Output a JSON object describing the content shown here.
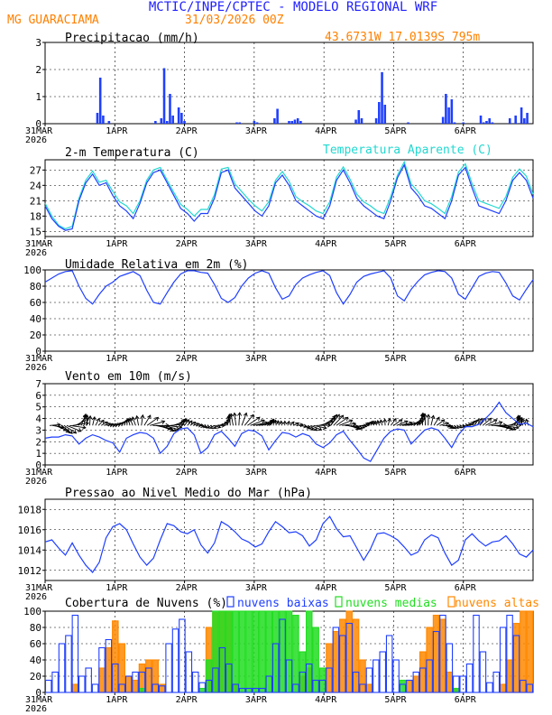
{
  "header": {
    "title": "MCTIC/INPE/CPTEC - MODELO REGIONAL WRF",
    "location": "MG GUARACIAMA",
    "run": "31/03/2026 00Z",
    "coords": "43.6731W 17.0139S 795m"
  },
  "colors": {
    "blue": "#1f3fff",
    "cyan": "#22d8d0",
    "green": "#22dd22",
    "orange": "#ff8800",
    "title_blue": "#2020ff",
    "title_orange": "#ff8000"
  },
  "x_axis": {
    "ticks": [
      "31MAR",
      "1APR",
      "2APR",
      "3APR",
      "4APR",
      "5APR",
      "6APR"
    ],
    "first_year": "2026",
    "days": 7
  },
  "chart_data": [
    {
      "type": "bar",
      "title": "Precipitacao (mm/h)",
      "ylim": [
        0,
        3
      ],
      "yticks": [
        "0",
        "1",
        "2",
        "3"
      ],
      "x_hours": [
        18,
        19,
        20,
        22,
        38,
        40,
        41,
        42,
        43,
        44,
        46,
        47,
        48,
        66,
        67,
        72,
        73,
        79,
        80,
        84,
        85,
        86,
        87,
        88,
        107,
        108,
        109,
        114,
        115,
        116,
        117,
        125,
        137,
        138,
        139,
        140,
        141,
        144,
        150,
        151,
        152,
        153,
        154,
        160,
        162,
        164,
        165,
        166
      ],
      "values": [
        0.4,
        1.7,
        0.3,
        0.1,
        0.1,
        0.2,
        2.05,
        0.1,
        1.1,
        0.3,
        0.6,
        0.4,
        0.1,
        0.05,
        0.05,
        0.1,
        0.05,
        0.2,
        0.55,
        0.1,
        0.1,
        0.15,
        0.2,
        0.1,
        0.15,
        0.5,
        0.2,
        0.2,
        0.8,
        1.9,
        0.7,
        0.05,
        0.25,
        1.1,
        0.6,
        0.9,
        0.05,
        0.05,
        0.3,
        0.05,
        0.1,
        0.2,
        0.05,
        0.2,
        0.3,
        0.6,
        0.2,
        0.4
      ]
    },
    {
      "type": "line",
      "title": "2-m Temperatura (C)",
      "legend": "Temperatura Aparente (C)",
      "ylim": [
        14,
        29
      ],
      "yticks": [
        "15",
        "18",
        "21",
        "24",
        "27"
      ],
      "series": [
        {
          "name": "2-m Temperatura",
          "values": [
            20,
            17.5,
            16,
            15.2,
            15.5,
            21,
            24.5,
            26.2,
            24,
            24.5,
            22,
            20,
            19,
            17.5,
            20.5,
            24.5,
            26.5,
            27,
            24.5,
            22,
            19.5,
            18.5,
            17,
            18.5,
            18.5,
            21.5,
            26.5,
            27,
            23.5,
            22,
            20.5,
            19,
            18,
            20,
            24.5,
            26,
            24,
            21,
            20,
            19,
            18,
            17.5,
            20,
            25,
            27,
            24.5,
            21.5,
            20,
            19,
            18,
            17.5,
            21,
            25.5,
            28,
            23.5,
            22,
            20,
            19.5,
            18.5,
            17.5,
            21,
            26,
            27.5,
            23.5,
            20,
            19.5,
            19,
            18.5,
            21,
            25,
            26.5,
            25,
            21.5
          ]
        },
        {
          "name": "Temperatura Aparente",
          "values": [
            20.5,
            18,
            16.2,
            15.5,
            16,
            21.5,
            25,
            26.8,
            24.6,
            25,
            22.8,
            20.8,
            20,
            18.5,
            21,
            25,
            27,
            27.5,
            25,
            22.6,
            20.3,
            19.3,
            18,
            19.3,
            19.3,
            22.2,
            27.2,
            27.5,
            24.3,
            22.8,
            21.3,
            20,
            19,
            20.8,
            25,
            26.7,
            24.8,
            21.8,
            20.8,
            20,
            19,
            18.5,
            20.8,
            25.6,
            27.6,
            25.2,
            22.3,
            20.8,
            20,
            19,
            18.5,
            21.8,
            26,
            28.6,
            24.3,
            22.8,
            21,
            20.4,
            19.5,
            18.5,
            21.8,
            26.6,
            28.2,
            24.3,
            21,
            20.5,
            20,
            19.5,
            21.8,
            25.6,
            27.2,
            25.8,
            22.3
          ]
        }
      ]
    },
    {
      "type": "line",
      "title": "Umidade Relativa em 2m (%)",
      "ylim": [
        0,
        100
      ],
      "yticks": [
        "0",
        "20",
        "40",
        "60",
        "80",
        "100"
      ],
      "series": [
        {
          "name": "Umidade Relativa",
          "values": [
            85,
            90,
            95,
            98,
            99,
            80,
            65,
            58,
            70,
            80,
            85,
            92,
            95,
            98,
            93,
            75,
            60,
            58,
            72,
            85,
            95,
            99,
            99,
            97,
            96,
            82,
            65,
            60,
            66,
            80,
            90,
            96,
            99,
            96,
            78,
            64,
            68,
            82,
            90,
            94,
            97,
            99,
            93,
            72,
            58,
            70,
            85,
            92,
            95,
            97,
            99,
            90,
            68,
            62,
            76,
            86,
            94,
            97,
            99,
            98,
            90,
            70,
            64,
            78,
            92,
            96,
            98,
            97,
            84,
            68,
            63,
            76,
            88
          ]
        }
      ]
    },
    {
      "type": "line",
      "title": "Vento em 10m (m/s)",
      "ylim": [
        0,
        7
      ],
      "yticks": [
        "0",
        "1",
        "2",
        "3",
        "4",
        "5",
        "6",
        "7"
      ],
      "series": [
        {
          "name": "Vento em 10m",
          "values": [
            2.3,
            2.4,
            2.4,
            2.6,
            2.5,
            1.8,
            2.3,
            2.6,
            2.4,
            2.1,
            1.9,
            1.1,
            2.3,
            2.6,
            2.8,
            2.7,
            2.3,
            1.0,
            1.6,
            2.7,
            3.1,
            3.2,
            2.6,
            1.0,
            1.5,
            2.6,
            2.9,
            2.3,
            1.6,
            2.7,
            3.0,
            2.9,
            2.5,
            1.3,
            2.1,
            2.8,
            2.7,
            2.4,
            2.7,
            2.5,
            1.8,
            1.5,
            1.9,
            2.6,
            2.9,
            2.1,
            1.4,
            0.6,
            0.3,
            1.3,
            2.3,
            2.9,
            3.1,
            3.0,
            1.8,
            2.4,
            3.0,
            3.2,
            3.0,
            2.3,
            1.5,
            2.6,
            3.3,
            3.3,
            3.5,
            4.0,
            4.6,
            5.4,
            4.5,
            4.0,
            3.5,
            3.6,
            3.3
          ]
        }
      ]
    },
    {
      "type": "line",
      "title": "Pressao ao Nivel Medio do Mar (hPa)",
      "ylim": [
        1011,
        1019
      ],
      "yticks": [
        "1012",
        "1014",
        "1016",
        "1018"
      ],
      "series": [
        {
          "name": "Pressao",
          "values": [
            1014.8,
            1015,
            1014.2,
            1013.5,
            1014.7,
            1013.5,
            1012.5,
            1011.8,
            1012.8,
            1015.2,
            1016.3,
            1016.6,
            1016,
            1014.6,
            1013.3,
            1012.5,
            1013.2,
            1015,
            1016.6,
            1016.4,
            1015.8,
            1015.6,
            1016,
            1014.5,
            1013.7,
            1014.7,
            1016.8,
            1016.4,
            1015.8,
            1015.1,
            1014.8,
            1014.3,
            1014.6,
            1015.8,
            1016.8,
            1016.3,
            1015.7,
            1015.8,
            1015.4,
            1014.4,
            1015,
            1016.6,
            1017.3,
            1016.1,
            1015.3,
            1015.4,
            1014.2,
            1013,
            1014.1,
            1015.6,
            1015.7,
            1015.4,
            1015,
            1014.3,
            1013.5,
            1013.8,
            1015,
            1015.5,
            1015.2,
            1013.7,
            1012.5,
            1013,
            1015,
            1015.6,
            1014.9,
            1014.4,
            1014.8,
            1014.9,
            1015.4,
            1014.6,
            1013.6,
            1013.3,
            1014
          ]
        }
      ]
    },
    {
      "type": "bar",
      "title": "Cobertura de Nuvens (%)",
      "legend": [
        "nuvens baixas",
        "nuvens medias",
        "nuvens altas"
      ],
      "ylim": [
        0,
        100
      ],
      "yticks": [
        "0",
        "20",
        "40",
        "60",
        "80",
        "100"
      ],
      "series": [
        {
          "name": "nuvens baixas",
          "values": [
            15,
            25,
            60,
            70,
            95,
            20,
            30,
            10,
            55,
            65,
            35,
            10,
            20,
            25,
            25,
            30,
            10,
            8,
            60,
            78,
            90,
            50,
            25,
            12,
            15,
            30,
            55,
            35,
            10,
            5,
            5,
            5,
            5,
            20,
            60,
            90,
            40,
            10,
            25,
            35,
            15,
            15,
            30,
            80,
            70,
            85,
            25,
            10,
            30,
            40,
            50,
            70,
            40,
            10,
            15,
            25,
            30,
            40,
            75,
            95,
            60,
            20,
            20,
            35,
            95,
            50,
            12,
            25,
            80,
            95,
            70,
            15,
            10
          ]
        },
        {
          "name": "nuvens medias",
          "values": [
            0,
            0,
            0,
            0,
            0,
            0,
            0,
            0,
            0,
            0,
            0,
            0,
            0,
            0,
            5,
            0,
            0,
            0,
            0,
            0,
            0,
            0,
            0,
            5,
            40,
            100,
            100,
            100,
            100,
            100,
            100,
            100,
            100,
            100,
            100,
            100,
            100,
            95,
            50,
            100,
            80,
            30,
            0,
            0,
            0,
            0,
            0,
            0,
            0,
            0,
            0,
            0,
            0,
            15,
            0,
            0,
            0,
            0,
            0,
            0,
            0,
            5,
            0,
            0,
            0,
            0,
            0,
            0,
            0,
            0,
            0,
            0,
            0
          ]
        },
        {
          "name": "nuvens altas",
          "values": [
            0,
            0,
            0,
            0,
            10,
            0,
            0,
            0,
            30,
            55,
            88,
            60,
            20,
            15,
            35,
            40,
            40,
            10,
            0,
            0,
            0,
            0,
            0,
            0,
            80,
            98,
            100,
            100,
            10,
            0,
            0,
            0,
            0,
            0,
            0,
            0,
            0,
            0,
            20,
            30,
            0,
            0,
            60,
            75,
            90,
            100,
            90,
            40,
            10,
            0,
            0,
            0,
            0,
            0,
            15,
            20,
            50,
            80,
            95,
            90,
            25,
            5,
            0,
            0,
            0,
            0,
            0,
            0,
            10,
            40,
            85,
            100,
            100
          ]
        }
      ]
    }
  ],
  "wind_vectors": {
    "count": 168,
    "note": "wind barbs along 10m wind panel"
  }
}
